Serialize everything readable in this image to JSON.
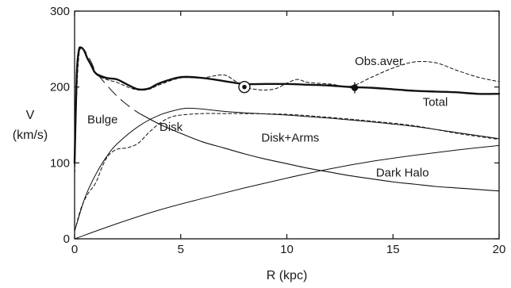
{
  "chart_data": {
    "type": "line",
    "xlabel": "R (kpc)",
    "ylabel": [
      "V",
      "(km/s)"
    ],
    "xlim": [
      0,
      20
    ],
    "ylim": [
      0,
      300
    ],
    "xticks": [
      "0",
      "5",
      "10",
      "15",
      "20"
    ],
    "xtick_values": [
      0,
      5,
      10,
      15,
      20
    ],
    "yticks": [
      "0",
      "100",
      "200",
      "300"
    ],
    "ytick_values": [
      0,
      100,
      200,
      300
    ],
    "grid": false,
    "series": [
      {
        "name": "Total",
        "style": "solid-bold",
        "x": [
          0,
          0.1,
          0.2,
          0.3,
          0.45,
          0.6,
          0.8,
          1.0,
          1.5,
          2.0,
          2.5,
          3.0,
          3.5,
          4.0,
          5.0,
          6.0,
          7.0,
          8.0,
          9.0,
          10.0,
          11.0,
          12.0,
          13.0,
          14.0,
          15.0,
          16.0,
          17.0,
          18.0,
          19.0,
          20.0
        ],
        "y": [
          100,
          215,
          248,
          252,
          248,
          238,
          228,
          218,
          212,
          210,
          203,
          197,
          198,
          205,
          213,
          212,
          208,
          204,
          204,
          204,
          203,
          202,
          200,
          199,
          197,
          195,
          194,
          193,
          191,
          191
        ]
      },
      {
        "name": "Obs.aver.",
        "style": "dashed",
        "x": [
          0,
          0.1,
          0.2,
          0.3,
          0.5,
          0.7,
          1.0,
          1.5,
          2.0,
          2.5,
          3.0,
          3.5,
          4.0,
          5.0,
          6.0,
          7.0,
          7.5,
          8.0,
          8.5,
          9.0,
          9.5,
          10.0,
          10.5,
          11.0,
          12.0,
          13.0,
          14.0,
          15.0,
          16.0,
          17.0,
          18.0,
          19.0,
          20.0
        ],
        "y": [
          80,
          190,
          240,
          251,
          246,
          232,
          217,
          210,
          206,
          200,
          196,
          197,
          203,
          212,
          212,
          216,
          209,
          200,
          197,
          196,
          198,
          205,
          210,
          206,
          204,
          201,
          213,
          225,
          233,
          232,
          222,
          213,
          207
        ]
      },
      {
        "name": "Bulge",
        "style": "dashed-long",
        "x": [
          0.05,
          0.1,
          0.2,
          0.3,
          0.5,
          0.8,
          1.0,
          1.5,
          2.0,
          2.5,
          3.0
        ],
        "y": [
          180,
          222,
          247,
          252,
          247,
          232,
          220,
          203,
          188,
          176,
          166
        ]
      },
      {
        "name": "Bulge",
        "style": "solid",
        "x": [
          3.0,
          4.0,
          5.0,
          6.0,
          7.0,
          8.0,
          9.0,
          10.0,
          11.0,
          12.0,
          13.0,
          14.0,
          15.0,
          16.0,
          17.0,
          18.0,
          19.0,
          20.0
        ],
        "y": [
          166,
          151,
          139,
          128,
          120,
          112,
          105,
          99,
          93,
          88,
          83,
          79,
          75,
          72,
          69,
          67,
          65,
          63
        ]
      },
      {
        "name": "Disk",
        "style": "solid-thin",
        "x": [
          0,
          0.5,
          1.0,
          1.5,
          2.0,
          3.0,
          4.0,
          5.0,
          5.5,
          6.0,
          7.0,
          8.0,
          10.0,
          12.0,
          14.0,
          16.0,
          18.0,
          20.0
        ],
        "y": [
          10,
          55,
          85,
          108,
          125,
          148,
          163,
          171,
          172,
          171,
          168,
          166,
          163,
          159,
          154,
          148,
          140,
          132
        ]
      },
      {
        "name": "Disk+Arms",
        "style": "dashed",
        "x": [
          0,
          0.3,
          0.6,
          1.0,
          1.3,
          1.6,
          2.0,
          2.5,
          3.0,
          3.5,
          4.0,
          4.5,
          5.0,
          6.0,
          7.0,
          8.0,
          10.0,
          12.0,
          14.0,
          16.0,
          18.0,
          20.0
        ],
        "y": [
          10,
          40,
          58,
          74,
          95,
          110,
          118,
          120,
          126,
          140,
          152,
          160,
          163,
          165,
          165,
          165,
          164,
          160,
          155,
          149,
          139,
          131
        ]
      },
      {
        "name": "Dark Halo",
        "style": "solid-thin",
        "x": [
          0,
          2,
          4,
          6,
          8,
          10,
          12,
          14,
          16,
          18,
          20
        ],
        "y": [
          0,
          20,
          38,
          53,
          67,
          80,
          92,
          102,
          110,
          117,
          123
        ]
      }
    ],
    "markers": [
      {
        "x": 8.0,
        "y": 200,
        "symbol": "sun"
      },
      {
        "x": 13.2,
        "y": 199,
        "symbol": "errorbar"
      }
    ],
    "annotations": [
      {
        "text": "Obs.aver.",
        "x": 13.2,
        "y": 229
      },
      {
        "text": "Total",
        "x": 16.4,
        "y": 175
      },
      {
        "text": "Bulge",
        "x": 0.6,
        "y": 152
      },
      {
        "text": "Disk",
        "x": 4.0,
        "y": 142
      },
      {
        "text": "Disk+Arms",
        "x": 8.8,
        "y": 128
      },
      {
        "text": "Dark Halo",
        "x": 14.2,
        "y": 82
      }
    ]
  }
}
